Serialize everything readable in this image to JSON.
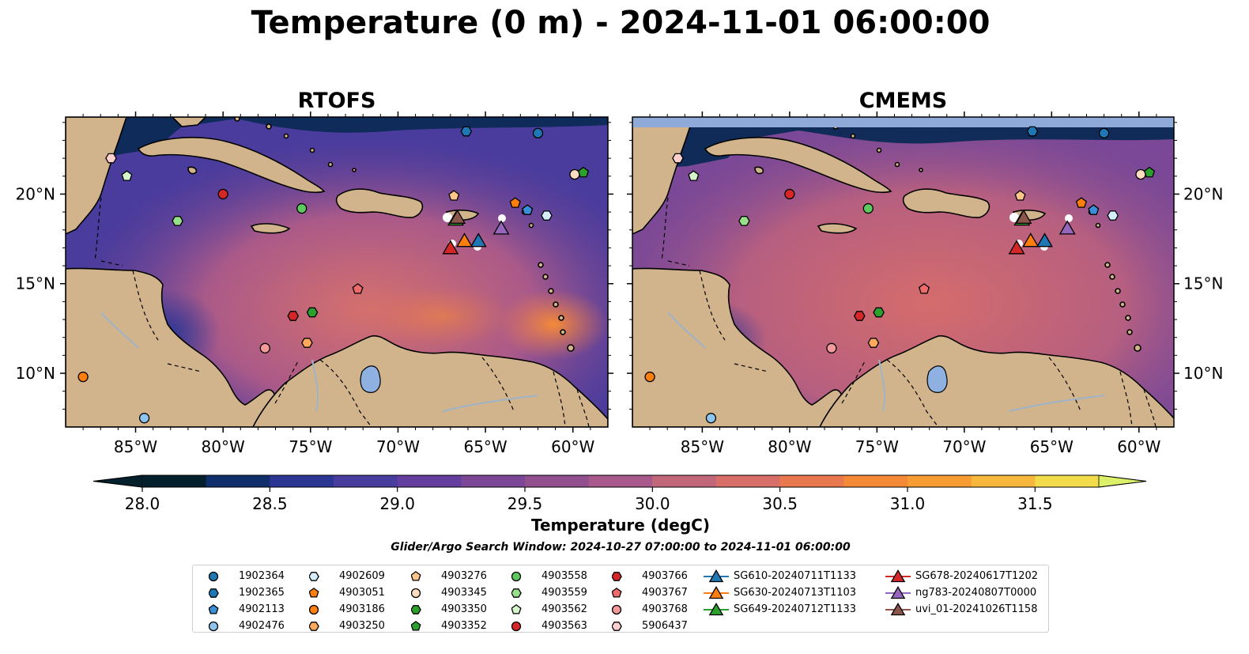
{
  "figure": {
    "title": "Temperature (0 m) - 2024-11-01 06:00:00",
    "panels": [
      {
        "title": "RTOFS"
      },
      {
        "title": "CMEMS"
      }
    ],
    "lon_ticks": [
      "85°W",
      "80°W",
      "75°W",
      "70°W",
      "65°W",
      "60°W"
    ],
    "lat_ticks": [
      "20°N",
      "15°N",
      "10°N"
    ],
    "colorbar": {
      "label": "Temperature (degC)",
      "ticks": [
        "28.0",
        "28.5",
        "29.0",
        "29.5",
        "30.0",
        "30.5",
        "31.0",
        "31.5"
      ],
      "min": 28.0,
      "max": 31.5,
      "step": 0.25,
      "colors": [
        "#04202d",
        "#0f2e6b",
        "#2b3694",
        "#493c9f",
        "#643e9e",
        "#7b4796",
        "#92508f",
        "#a9598b",
        "#c2667a",
        "#d86e68",
        "#e9784e",
        "#f48a38",
        "#f79c33",
        "#f7b73c",
        "#f2dc4b"
      ],
      "extend_low": "#04202d",
      "extend_high": "#dcf06a"
    },
    "search_window": "Glider/Argo Search Window: 2024-10-27 07:00:00 to 2024-11-01 06:00:00",
    "colors": {
      "land": "#d2b48c",
      "lake": "#8fb1e2",
      "river": "#9fb3c8",
      "nodata_band": "#8fa9d9"
    }
  },
  "legend": [
    {
      "id": "1902364",
      "marker": "circle",
      "color": "#1f77b4"
    },
    {
      "id": "1902365",
      "marker": "hexagon",
      "color": "#1f77b4"
    },
    {
      "id": "4902113",
      "marker": "pentagon",
      "color": "#3a8fd8"
    },
    {
      "id": "4902476",
      "marker": "circle",
      "color": "#8ec5ee"
    },
    {
      "id": "4902609",
      "marker": "hexagon",
      "color": "#d5ecfa"
    },
    {
      "id": "4903051",
      "marker": "pentagon",
      "color": "#ff7f0e"
    },
    {
      "id": "4903186",
      "marker": "circle",
      "color": "#ff7f0e"
    },
    {
      "id": "4903250",
      "marker": "hexagon",
      "color": "#ffa95a"
    },
    {
      "id": "4903276",
      "marker": "pentagon",
      "color": "#ffc58a"
    },
    {
      "id": "4903345",
      "marker": "circle",
      "color": "#ffddc0"
    },
    {
      "id": "4903350",
      "marker": "hexagon",
      "color": "#2ca02c"
    },
    {
      "id": "4903352",
      "marker": "pentagon",
      "color": "#2ca02c"
    },
    {
      "id": "4903558",
      "marker": "circle",
      "color": "#5ec95e"
    },
    {
      "id": "4903559",
      "marker": "hexagon",
      "color": "#98df8a"
    },
    {
      "id": "4903562",
      "marker": "pentagon",
      "color": "#d4f5cc"
    },
    {
      "id": "4903563",
      "marker": "circle",
      "color": "#d62728"
    },
    {
      "id": "4903766",
      "marker": "hexagon",
      "color": "#d62728"
    },
    {
      "id": "4903767",
      "marker": "pentagon",
      "color": "#ee6b6b"
    },
    {
      "id": "4903768",
      "marker": "circle",
      "color": "#f59a9a"
    },
    {
      "id": "5906437",
      "marker": "hexagon",
      "color": "#ffd0d0"
    },
    {
      "id": "SG610-20240711T1133",
      "marker": "triangle",
      "color": "#1f77b4",
      "line": true
    },
    {
      "id": "SG630-20240713T1103",
      "marker": "triangle",
      "color": "#ff7f0e",
      "line": true
    },
    {
      "id": "SG649-20240712T1133",
      "marker": "triangle",
      "color": "#2ca02c",
      "line": true
    },
    {
      "id": "SG678-20240617T1202",
      "marker": "triangle",
      "color": "#d62728",
      "line": true
    },
    {
      "id": "ng783-20240807T0000",
      "marker": "triangle",
      "color": "#9467bd",
      "line": true
    },
    {
      "id": "uvi_01-20241026T1158",
      "marker": "triangle",
      "color": "#8c564b",
      "line": true
    }
  ],
  "observations": [
    {
      "id": "1902364",
      "lon": -62.0,
      "lat": 23.4
    },
    {
      "id": "1902365",
      "lon": -66.1,
      "lat": 23.5
    },
    {
      "id": "4902113",
      "lon": -62.6,
      "lat": 19.1
    },
    {
      "id": "4902476",
      "lon": -84.5,
      "lat": 7.5
    },
    {
      "id": "4902609",
      "lon": -61.5,
      "lat": 18.8
    },
    {
      "id": "4903051",
      "lon": -63.3,
      "lat": 19.5
    },
    {
      "id": "4903186",
      "lon": -88.0,
      "lat": 9.8
    },
    {
      "id": "4903250",
      "lon": -75.2,
      "lat": 11.7
    },
    {
      "id": "4903276",
      "lon": -66.8,
      "lat": 19.9
    },
    {
      "id": "4903345",
      "lon": -59.9,
      "lat": 21.1
    },
    {
      "id": "4903350",
      "lon": -74.9,
      "lat": 13.4
    },
    {
      "id": "4903352",
      "lon": -59.4,
      "lat": 21.2
    },
    {
      "id": "4903558",
      "lon": -75.5,
      "lat": 19.2
    },
    {
      "id": "4903559",
      "lon": -82.6,
      "lat": 18.5
    },
    {
      "id": "4903562",
      "lon": -85.5,
      "lat": 21.0
    },
    {
      "id": "4903563",
      "lon": -80.0,
      "lat": 20.0
    },
    {
      "id": "4903766",
      "lon": -76.0,
      "lat": 13.2
    },
    {
      "id": "4903767",
      "lon": -72.3,
      "lat": 14.7
    },
    {
      "id": "4903768",
      "lon": -77.6,
      "lat": 11.4
    },
    {
      "id": "5906437",
      "lon": -86.4,
      "lat": 22.0
    },
    {
      "id": "SG610-20240711T1133",
      "lon": -65.4,
      "lat": 17.4
    },
    {
      "id": "SG630-20240713T1103",
      "lon": -66.2,
      "lat": 17.4
    },
    {
      "id": "SG649-20240712T1133",
      "lon": -66.7,
      "lat": 18.6
    },
    {
      "id": "SG678-20240617T1202",
      "lon": -67.0,
      "lat": 17.0
    },
    {
      "id": "ng783-20240807T0000",
      "lon": -64.1,
      "lat": 18.1
    },
    {
      "id": "uvi_01-20241026T1158",
      "lon": -66.6,
      "lat": 18.7
    }
  ]
}
